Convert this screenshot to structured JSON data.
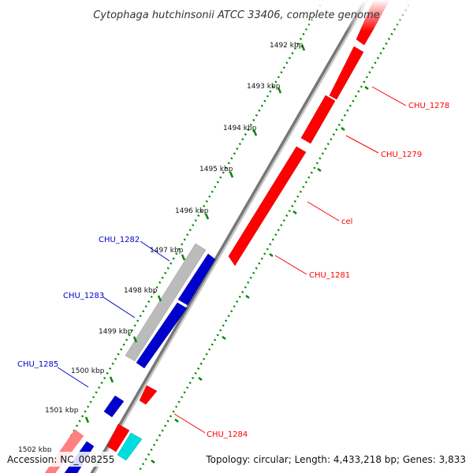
{
  "title": "Cytophaga hutchinsonii ATCC 33406, complete genome",
  "footer": {
    "accession": "Accession: NC_008255",
    "summary": "Topology: circular; Length: 4,433,218 bp; Genes: 3,833"
  },
  "ticks": [
    "1492 kbp",
    "1493 kbp",
    "1494 kbp",
    "1495 kbp",
    "1496 kbp",
    "1497 kbp",
    "1498 kbp",
    "1499 kbp",
    "1500 kbp",
    "1501 kbp",
    "1502 kbp"
  ],
  "genes_forward": [
    "CHU_1278",
    "CHU_1279",
    "cel",
    "CHU_1281",
    "CHU_1284"
  ],
  "genes_reverse": [
    "CHU_1282",
    "CHU_1283",
    "CHU_1285"
  ],
  "colors": {
    "forward": "#ff0000",
    "reverse": "#0000cc",
    "backbone": "#808080",
    "tick_dots": "#008800",
    "pseudo": "#bbbbbb",
    "rna": "#00dddd",
    "faded": "#ff8080"
  }
}
